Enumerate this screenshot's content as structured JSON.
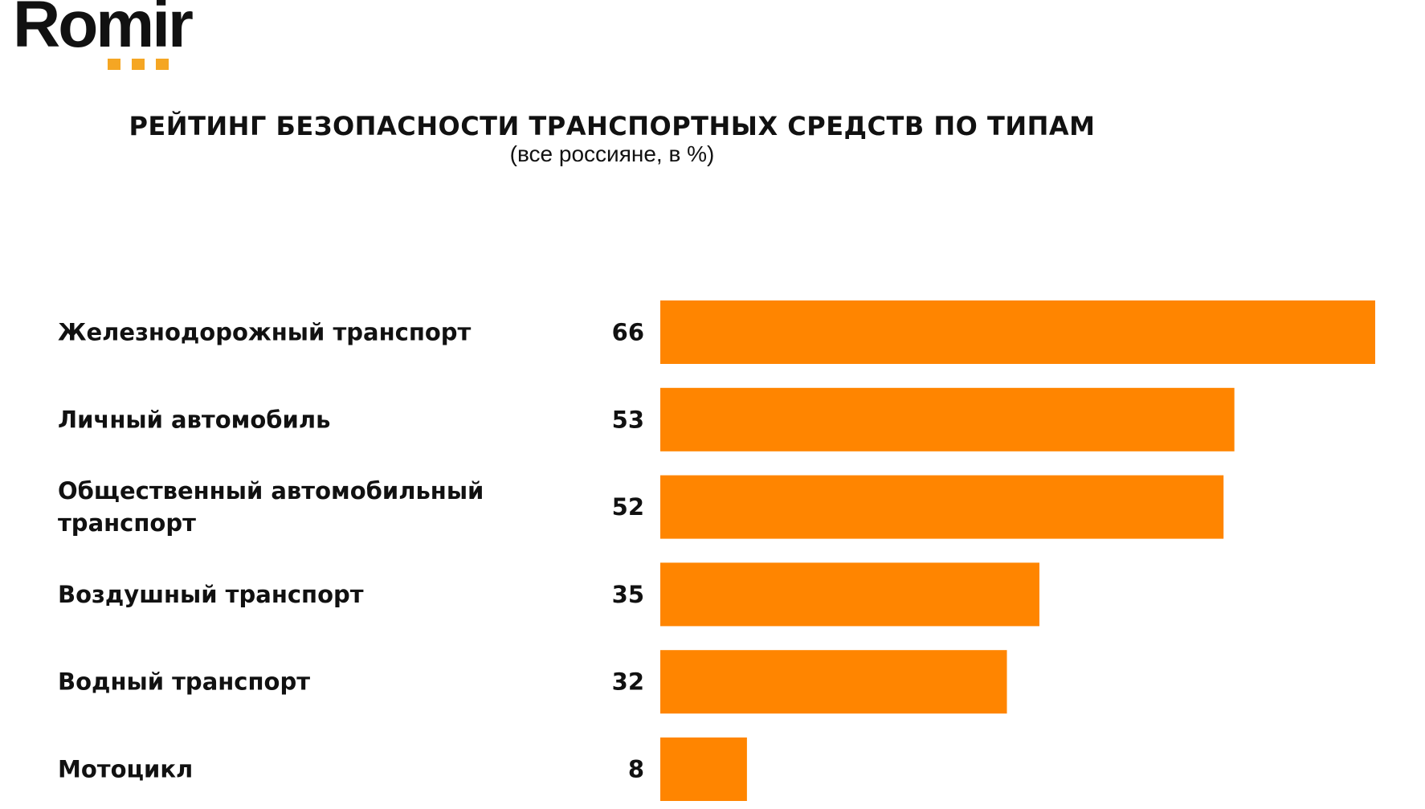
{
  "logo": {
    "text": "Romir",
    "dot_color": "#F5A623"
  },
  "chart_data": {
    "type": "bar",
    "orientation": "horizontal",
    "title": "РЕЙТИНГ БЕЗОПАСНОСТИ ТРАНСПОРТНЫХ СРЕДСТВ ПО ТИПАМ",
    "subtitle": "(все россияне, в %)",
    "categories": [
      [
        "Железнодорожный транспорт"
      ],
      [
        "Личный автомобиль"
      ],
      [
        "Общественный автомобильный",
        "транспорт"
      ],
      [
        "Воздушный транспорт"
      ],
      [
        "Водный транспорт"
      ],
      [
        "Мотоцикл"
      ]
    ],
    "values": [
      66,
      53,
      52,
      35,
      32,
      8
    ],
    "bar_color": "#FF8500",
    "xlim": [
      0,
      66
    ],
    "grid": false,
    "legend": false
  }
}
